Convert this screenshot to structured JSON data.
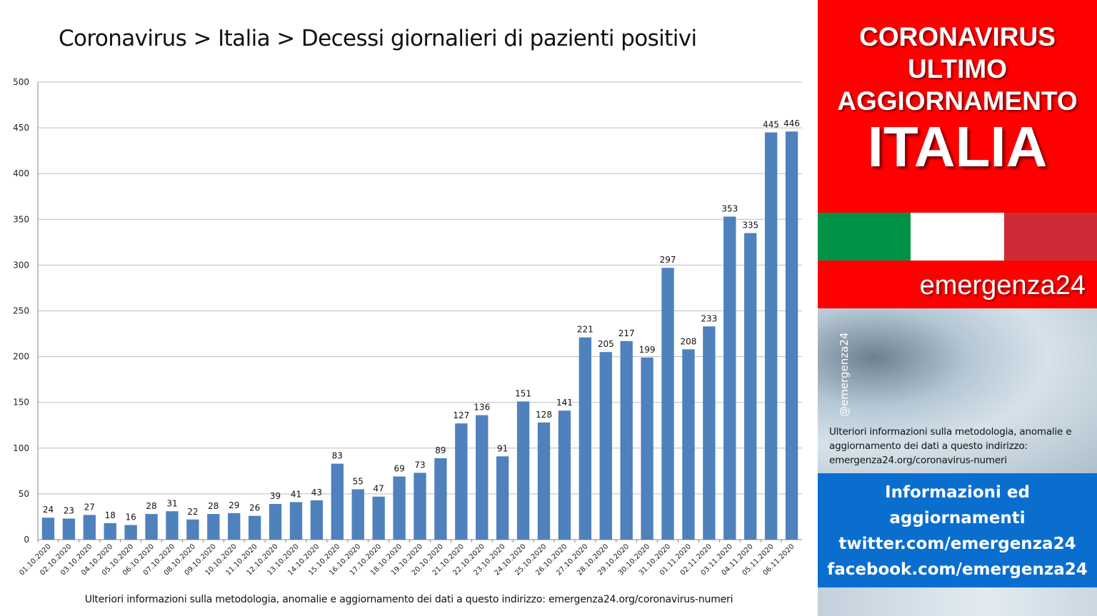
{
  "chart_data": {
    "type": "bar",
    "title": "Coronavirus > Italia > Decessi giornalieri di pazienti positivi",
    "xlabel": "",
    "ylabel": "",
    "ylim": [
      0,
      500
    ],
    "yticks": [
      0,
      50,
      100,
      150,
      200,
      250,
      300,
      350,
      400,
      450,
      500
    ],
    "grid": "horizontal",
    "legend": "none",
    "bar_color": "#4f81bd",
    "data_labels": true,
    "categories": [
      "01.10.2020",
      "02.10.2020",
      "03.10.2020",
      "04.10.2020",
      "05.10.2020",
      "06.10.2020",
      "07.10.2020",
      "08.10.2020",
      "09.10.2020",
      "10.10.2020",
      "11.10.2020",
      "12.10.2020",
      "13.10.2020",
      "14.10.2020",
      "15.10.2020",
      "16.10.2020",
      "17.10.2020",
      "18.10.2020",
      "19.10.2020",
      "20.10.2020",
      "21.10.2020",
      "22.10.2020",
      "23.10.2020",
      "24.10.2020",
      "25.10.2020",
      "26.10.2020",
      "27.10.2020",
      "28.10.2020",
      "29.10.2020",
      "30.10.2020",
      "31.10.2020",
      "01.11.2020",
      "02.11.2020",
      "03.11.2020",
      "04.11.2020",
      "05.11.2020",
      "06.11.2020"
    ],
    "values": [
      24,
      23,
      27,
      18,
      16,
      28,
      31,
      22,
      28,
      29,
      26,
      39,
      41,
      43,
      83,
      55,
      47,
      69,
      73,
      89,
      127,
      136,
      91,
      151,
      128,
      141,
      221,
      205,
      217,
      199,
      297,
      208,
      233,
      353,
      335,
      445,
      446
    ]
  },
  "footnote": "Ulteriori informazioni sulla metodologia, anomalie e aggiornamento dei dati a questo indirizzo: emergenza24.org/coronavirus-numeri",
  "sidebar": {
    "headline": [
      "CORONAVIRUS",
      "ULTIMO",
      "AGGIORNAMENTO"
    ],
    "country": "ITALIA",
    "brand": "emergenza24",
    "handle": "@emergenza24",
    "method_note": "Ulteriori informazioni sulla metodologia, anomalie e aggiornamento dei dati a questo indirizzo: emergenza24.org/coronavirus-numeri",
    "info_lines": [
      "Informazioni ed",
      "aggiornamenti",
      "twitter.com/emergenza24",
      "facebook.com/emergenza24"
    ],
    "flag_colors": [
      "#009246",
      "#ffffff",
      "#ce2b37"
    ],
    "banner_color": "#ff0000",
    "info_color": "#0a6ecf"
  }
}
